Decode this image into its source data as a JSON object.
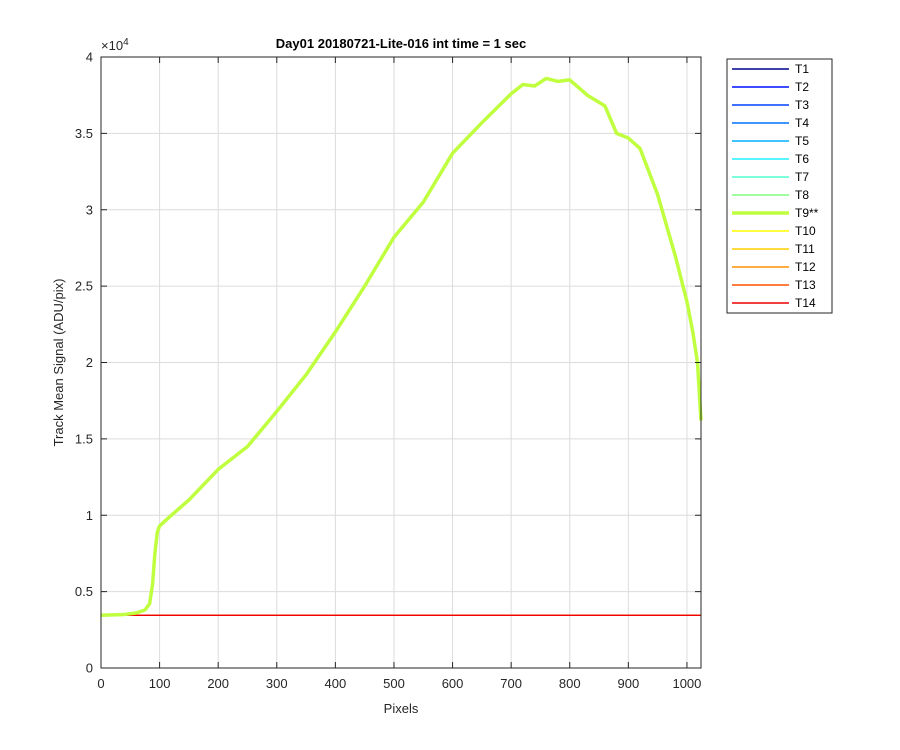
{
  "chart_data": {
    "type": "line",
    "title": "Day01 20180721-Lite-016 int time = 1 sec",
    "xlabel": "Pixels",
    "ylabel": "Track Mean Signal (ADU/pix)",
    "y_exponent_label": "×10",
    "y_exponent": "4",
    "xlim": [
      0,
      1024
    ],
    "ylim": [
      0,
      40000
    ],
    "xticks": [
      0,
      100,
      200,
      300,
      400,
      500,
      600,
      700,
      800,
      900,
      1000
    ],
    "xtick_labels": [
      "0",
      "100",
      "200",
      "300",
      "400",
      "500",
      "600",
      "700",
      "800",
      "900",
      "1000"
    ],
    "yticks": [
      0,
      5000,
      10000,
      15000,
      20000,
      25000,
      30000,
      35000,
      40000
    ],
    "ytick_labels": [
      "0",
      "0.5",
      "1",
      "1.5",
      "2",
      "2.5",
      "3",
      "3.5",
      "4"
    ],
    "grid": true,
    "legend_position": "outside-top-right",
    "baseline_value": 3450,
    "series": [
      {
        "name": "T1",
        "color": "#00008f",
        "baseline": true
      },
      {
        "name": "T2",
        "color": "#0010ff",
        "baseline": true
      },
      {
        "name": "T3",
        "color": "#0040ff",
        "baseline": true
      },
      {
        "name": "T4",
        "color": "#0070ff",
        "baseline": true
      },
      {
        "name": "T5",
        "color": "#00b0ff",
        "baseline": true
      },
      {
        "name": "T6",
        "color": "#20f0ff",
        "baseline": true
      },
      {
        "name": "T7",
        "color": "#50ffcf",
        "baseline": true
      },
      {
        "name": "T8",
        "color": "#80ff80",
        "baseline": true
      },
      {
        "name": "T9**",
        "color": "#bfff3f",
        "highlight": true,
        "x": [
          0,
          40,
          60,
          75,
          83,
          88,
          92,
          96,
          100,
          120,
          150,
          200,
          250,
          300,
          350,
          400,
          450,
          500,
          550,
          600,
          650,
          700,
          720,
          740,
          760,
          780,
          800,
          830,
          860,
          880,
          900,
          920,
          950,
          980,
          1000,
          1010,
          1018,
          1024
        ],
        "y": [
          3450,
          3500,
          3600,
          3800,
          4200,
          5500,
          7500,
          8900,
          9300,
          10000,
          11000,
          13000,
          14500,
          16800,
          19200,
          22000,
          25000,
          28200,
          30500,
          33700,
          35700,
          37600,
          38200,
          38100,
          38600,
          38400,
          38500,
          37500,
          36800,
          35000,
          34700,
          34000,
          31000,
          27000,
          24000,
          22000,
          20000,
          16200
        ]
      },
      {
        "name": "T10",
        "color": "#ffff00",
        "baseline": true
      },
      {
        "name": "T11",
        "color": "#ffcf00",
        "baseline": true
      },
      {
        "name": "T12",
        "color": "#ff9000",
        "baseline": true
      },
      {
        "name": "T13",
        "color": "#ff5000",
        "baseline": true
      },
      {
        "name": "T14",
        "color": "#ee0000",
        "baseline": true
      }
    ]
  }
}
